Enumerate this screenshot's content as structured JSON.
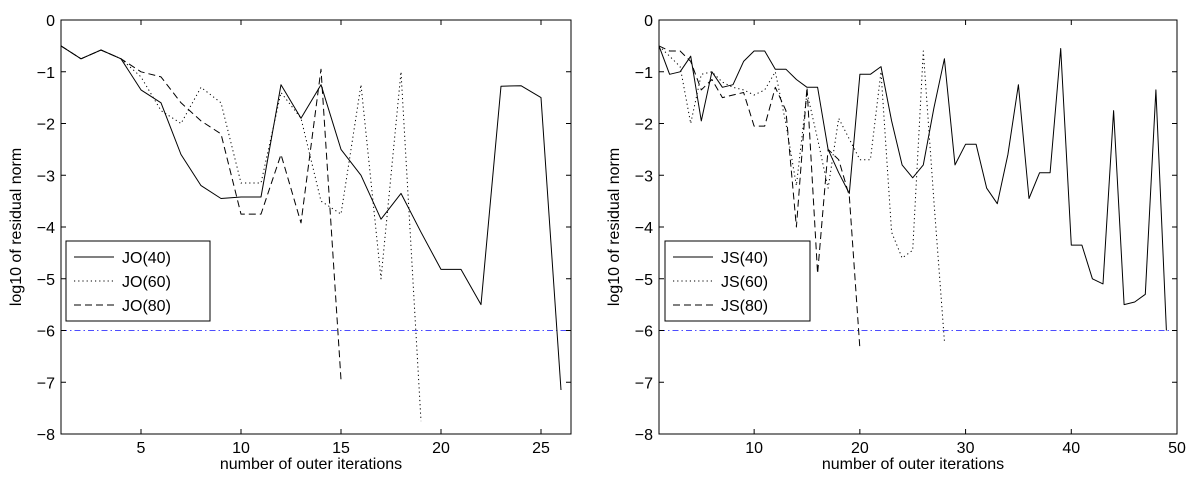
{
  "chart_data": [
    {
      "type": "line",
      "xlabel": "number of outer iterations",
      "ylabel": "log10 of residual norm",
      "xlim": [
        1,
        26.5
      ],
      "ylim": [
        -8,
        0
      ],
      "xticks": [
        5,
        10,
        15,
        20,
        25
      ],
      "yticks": [
        0,
        -1,
        -2,
        -3,
        -4,
        -5,
        -6,
        -7,
        -8
      ],
      "grid": false,
      "legend_position": "lower-left",
      "reference_line": {
        "y": -6,
        "style": "dash-dot",
        "color": "#4d4dff"
      },
      "series": [
        {
          "name": "JO(40)",
          "style": "solid",
          "x": [
            1,
            2,
            3,
            4,
            5,
            6,
            7,
            8,
            9,
            10,
            11,
            12,
            13,
            14,
            15,
            16,
            17,
            18,
            19,
            20,
            21,
            22,
            23,
            24,
            25,
            26
          ],
          "y": [
            -0.5,
            -0.75,
            -0.58,
            -0.75,
            -1.35,
            -1.6,
            -2.6,
            -3.2,
            -3.45,
            -3.42,
            -3.42,
            -1.25,
            -1.9,
            -1.25,
            -2.5,
            -3.0,
            -3.85,
            -3.35,
            -4.1,
            -4.82,
            -4.82,
            -5.5,
            -1.28,
            -1.27,
            -1.5,
            -7.15
          ]
        },
        {
          "name": "JO(60)",
          "style": "dotted",
          "x": [
            1,
            2,
            3,
            4,
            5,
            6,
            7,
            8,
            9,
            10,
            11,
            12,
            13,
            14,
            15,
            16,
            17,
            18,
            19
          ],
          "y": [
            -0.5,
            -0.75,
            -0.58,
            -0.75,
            -1.1,
            -1.75,
            -2.0,
            -1.3,
            -1.6,
            -3.15,
            -3.15,
            -1.4,
            -1.9,
            -3.5,
            -3.75,
            -1.25,
            -5.0,
            -1.0,
            -7.75
          ]
        },
        {
          "name": "JO(80)",
          "style": "dashed",
          "x": [
            1,
            2,
            3,
            4,
            5,
            6,
            7,
            8,
            9,
            10,
            11,
            12,
            13,
            14,
            15
          ],
          "y": [
            -0.5,
            -0.75,
            -0.58,
            -0.75,
            -1.0,
            -1.1,
            -1.6,
            -1.95,
            -2.2,
            -3.75,
            -3.75,
            -2.6,
            -3.92,
            -0.95,
            -6.95
          ]
        }
      ]
    },
    {
      "type": "line",
      "xlabel": "number of outer iterations",
      "ylabel": "log10 of residual norm",
      "xlim": [
        1,
        50
      ],
      "ylim": [
        -8,
        0
      ],
      "xticks": [
        10,
        20,
        30,
        40,
        50
      ],
      "yticks": [
        0,
        -1,
        -2,
        -3,
        -4,
        -5,
        -6,
        -7,
        -8
      ],
      "grid": false,
      "legend_position": "lower-left",
      "reference_line": {
        "y": -6,
        "style": "dash-dot",
        "color": "#4d4dff"
      },
      "series": [
        {
          "name": "JS(40)",
          "style": "solid",
          "x": [
            1,
            2,
            3,
            4,
            5,
            6,
            7,
            8,
            9,
            10,
            11,
            12,
            13,
            14,
            15,
            16,
            17,
            18,
            19,
            20,
            21,
            22,
            23,
            24,
            25,
            26,
            27,
            28,
            29,
            30,
            31,
            32,
            33,
            34,
            35,
            36,
            37,
            38,
            39,
            40,
            41,
            42,
            43,
            44,
            45,
            46,
            47,
            48,
            49
          ],
          "y": [
            -0.5,
            -1.05,
            -1.0,
            -0.7,
            -1.95,
            -1.0,
            -1.3,
            -1.25,
            -0.8,
            -0.6,
            -0.6,
            -0.95,
            -0.95,
            -1.15,
            -1.3,
            -1.3,
            -2.5,
            -2.95,
            -3.35,
            -1.05,
            -1.05,
            -0.9,
            -1.95,
            -2.8,
            -3.05,
            -2.8,
            -1.7,
            -0.75,
            -2.8,
            -2.4,
            -2.4,
            -3.25,
            -3.55,
            -2.6,
            -1.25,
            -3.45,
            -2.95,
            -2.95,
            -0.55,
            -4.35,
            -4.35,
            -5.0,
            -5.1,
            -1.75,
            -5.5,
            -5.45,
            -5.3,
            -1.35,
            -6.0
          ]
        },
        {
          "name": "JS(60)",
          "style": "dotted",
          "x": [
            1,
            2,
            3,
            4,
            5,
            6,
            7,
            8,
            9,
            10,
            11,
            12,
            13,
            14,
            15,
            16,
            17,
            18,
            19,
            20,
            21,
            22,
            23,
            24,
            25,
            26,
            27,
            28
          ],
          "y": [
            -0.5,
            -0.7,
            -0.9,
            -2.0,
            -1.05,
            -1.0,
            -1.2,
            -1.3,
            -1.35,
            -1.45,
            -1.35,
            -1.0,
            -2.0,
            -3.2,
            -1.4,
            -2.3,
            -3.25,
            -1.9,
            -2.3,
            -2.7,
            -2.7,
            -1.0,
            -4.1,
            -4.6,
            -4.45,
            -0.6,
            -3.5,
            -6.2
          ]
        },
        {
          "name": "JS(80)",
          "style": "dashed",
          "x": [
            1,
            2,
            3,
            4,
            5,
            6,
            7,
            8,
            9,
            10,
            11,
            12,
            13,
            14,
            15,
            16,
            17,
            18,
            19,
            20
          ],
          "y": [
            -0.5,
            -0.6,
            -0.6,
            -0.8,
            -1.35,
            -1.15,
            -1.5,
            -1.45,
            -1.4,
            -2.05,
            -2.05,
            -1.3,
            -1.75,
            -4.0,
            -1.3,
            -4.9,
            -2.5,
            -2.7,
            -3.4,
            -6.35
          ]
        }
      ]
    }
  ]
}
